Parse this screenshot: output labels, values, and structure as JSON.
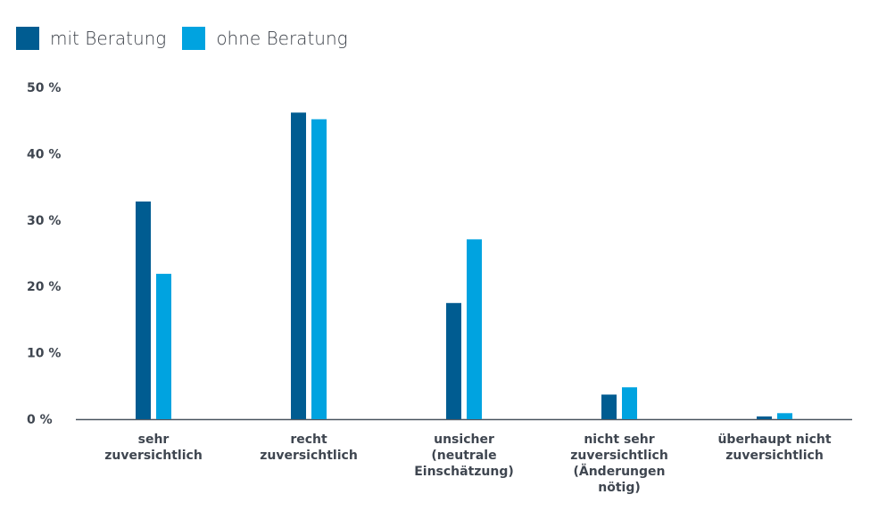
{
  "chart_data": {
    "type": "bar",
    "categories": [
      [
        "sehr",
        "zuversichtlich"
      ],
      [
        "recht",
        "zuversichtlich"
      ],
      [
        "unsicher",
        "(neutrale",
        "Einschätzung)"
      ],
      [
        "nicht sehr",
        "zuversichtlich",
        "(Änderungen",
        "nötig)"
      ],
      [
        "überhaupt nicht",
        "zuversichtlich"
      ]
    ],
    "series": [
      {
        "name": "mit Beratung",
        "color": "#005c91",
        "values": [
          32.8,
          46.2,
          17.5,
          3.7,
          0.4
        ]
      },
      {
        "name": "ohne Beratung",
        "color": "#00a3e0",
        "values": [
          21.9,
          45.2,
          27.1,
          4.8,
          0.9
        ]
      }
    ],
    "yticks": [
      "0 %",
      "10 %",
      "20 %",
      "30 %",
      "40 %",
      "50 %"
    ],
    "ylim": [
      0,
      50
    ],
    "legend_position": "top-left",
    "grid": false
  }
}
